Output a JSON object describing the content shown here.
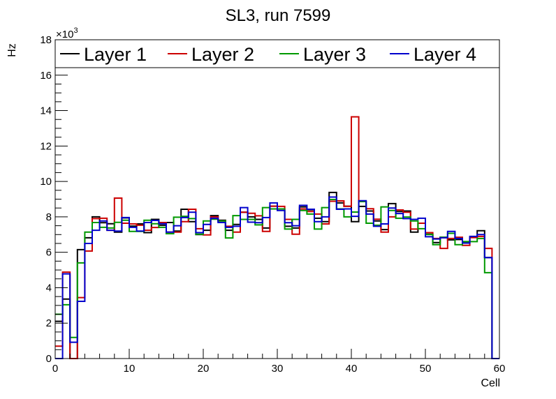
{
  "chart_data": {
    "type": "histogram-step",
    "title": "SL3, run 7599",
    "xlabel": "Cell",
    "ylabel": "Hz",
    "y_multiplier_label": "×10",
    "y_multiplier_exp": "3",
    "xlim": [
      0,
      60
    ],
    "ylim": [
      0,
      18
    ],
    "x_ticks": [
      "0",
      "10",
      "20",
      "30",
      "40",
      "50",
      "60"
    ],
    "y_ticks": [
      "0",
      "2",
      "4",
      "6",
      "8",
      "10",
      "12",
      "14",
      "16",
      "18"
    ],
    "legend_placement": "top",
    "series": [
      {
        "name": "Layer 1",
        "color": "#000000",
        "values": [
          2.1,
          3.36,
          0,
          6.15,
          6.82,
          8.0,
          7.67,
          7.61,
          7.14,
          7.94,
          7.48,
          7.6,
          7.11,
          7.86,
          7.53,
          7.68,
          7.2,
          8.43,
          7.73,
          7.0,
          7.24,
          8.07,
          7.81,
          7.24,
          7.57,
          8.26,
          8.0,
          7.86,
          7.37,
          8.6,
          8.45,
          7.47,
          7.37,
          8.56,
          8.4,
          7.92,
          7.73,
          9.38,
          8.79,
          8.6,
          7.73,
          8.59,
          8.33,
          7.77,
          7.28,
          8.75,
          8.3,
          8.33,
          7.14,
          7.64,
          7.02,
          6.55,
          6.85,
          6.7,
          6.72,
          6.6,
          6.85,
          7.22,
          5.7,
          0
        ]
      },
      {
        "name": "Layer 2",
        "color": "#cc0000",
        "values": [
          0.7,
          4.88,
          0,
          3.44,
          6.07,
          7.9,
          7.92,
          7.24,
          9.06,
          7.64,
          7.6,
          7.53,
          7.24,
          7.4,
          7.68,
          7.14,
          7.14,
          7.73,
          8.43,
          7.33,
          6.98,
          8.0,
          7.77,
          7.47,
          7.14,
          8.26,
          8.2,
          8.06,
          7.18,
          8.6,
          8.59,
          7.86,
          7.02,
          8.45,
          8.3,
          8.16,
          7.6,
          8.88,
          8.9,
          8.59,
          13.65,
          8.86,
          8.46,
          7.87,
          7.14,
          8.0,
          8.39,
          8.26,
          7.31,
          7.64,
          7.11,
          6.78,
          6.22,
          6.78,
          6.85,
          6.39,
          6.83,
          6.9,
          6.22,
          0
        ]
      },
      {
        "name": "Layer 3",
        "color": "#009900",
        "values": [
          2.5,
          3.04,
          1.19,
          5.4,
          7.14,
          7.68,
          7.41,
          7.37,
          7.69,
          7.81,
          7.18,
          7.18,
          7.81,
          7.61,
          7.41,
          7.05,
          7.98,
          8.03,
          7.9,
          7.02,
          7.77,
          7.87,
          7.77,
          6.81,
          8.07,
          7.86,
          7.86,
          7.55,
          8.52,
          8.45,
          8.45,
          7.31,
          7.86,
          8.36,
          8.16,
          7.31,
          8.52,
          8.98,
          8.45,
          8.0,
          8.27,
          8.86,
          7.64,
          7.53,
          8.56,
          8.36,
          7.92,
          7.99,
          7.77,
          7.33,
          7.0,
          6.43,
          6.85,
          7.07,
          6.43,
          6.6,
          6.6,
          6.78,
          4.85,
          0
        ]
      },
      {
        "name": "Layer 4",
        "color": "#0000cc",
        "values": [
          0,
          4.78,
          0.92,
          3.23,
          6.5,
          7.24,
          7.77,
          7.24,
          7.2,
          7.96,
          7.41,
          7.2,
          7.68,
          7.8,
          7.61,
          7.14,
          7.5,
          7.96,
          8.26,
          7.11,
          7.57,
          7.92,
          7.68,
          7.41,
          7.47,
          8.52,
          7.7,
          7.67,
          7.96,
          8.79,
          8.36,
          7.67,
          7.5,
          8.65,
          8.43,
          7.73,
          8.0,
          9.12,
          8.43,
          8.45,
          8.03,
          8.91,
          8.16,
          7.47,
          7.6,
          8.5,
          8.19,
          7.9,
          7.86,
          7.92,
          6.88,
          6.75,
          6.82,
          7.18,
          6.78,
          6.52,
          6.9,
          7.0,
          5.7,
          0
        ]
      }
    ]
  }
}
